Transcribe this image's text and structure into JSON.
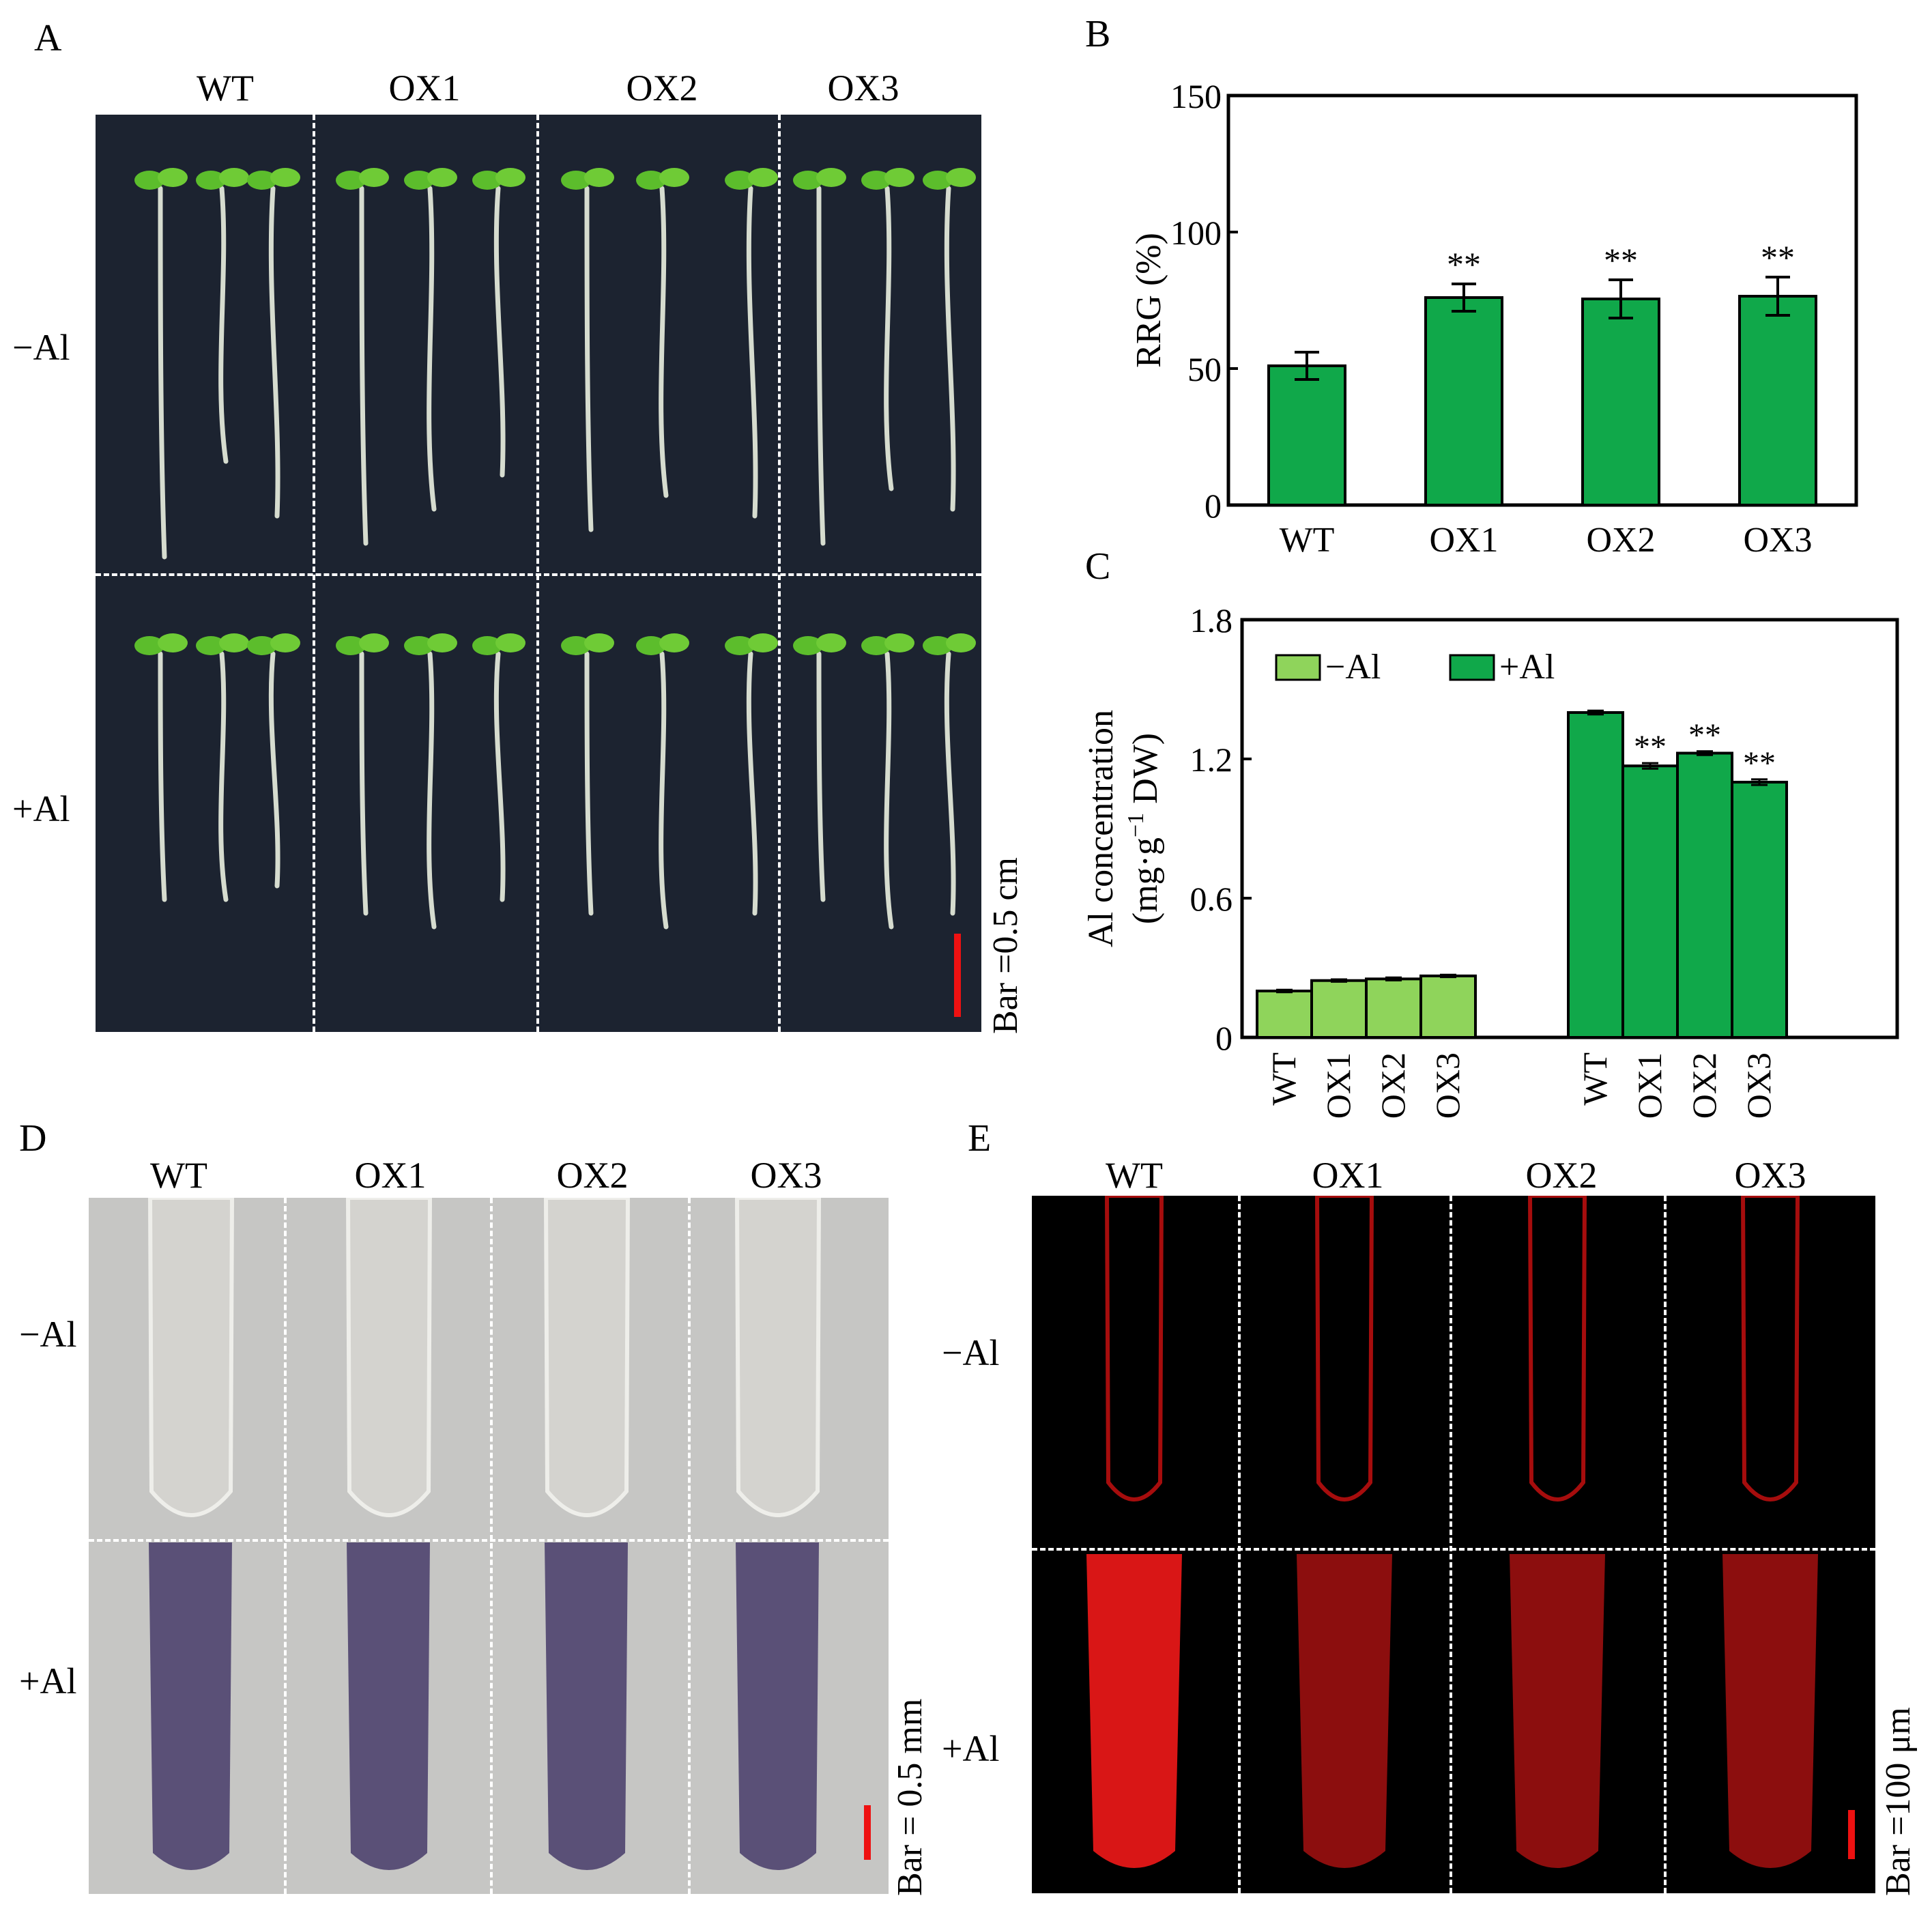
{
  "panel_letters": [
    "A",
    "B",
    "C",
    "D",
    "E"
  ],
  "genotypes": [
    "WT",
    "OX1",
    "OX2",
    "OX3"
  ],
  "treatments": [
    "−Al",
    "+Al"
  ],
  "scale_bars": {
    "A": "Bar =0.5 cm",
    "D": "Bar = 0.5 mm",
    "E": "Bar =100 μm"
  },
  "colors": {
    "bar_dark": "#10a84a",
    "bar_light": "#8fd45b",
    "scale_bar": "#ee1111",
    "photo_A_bg": "#1c2330",
    "photo_D_bg": "#c6c6c4",
    "photo_D_stain": "#5a5077",
    "photo_E_bg": "#000000",
    "photo_E_signal": "#ff1a1a"
  },
  "chart_data": [
    {
      "panel": "B",
      "type": "bar",
      "title": "",
      "xlabel": "",
      "ylabel": "RRG (%)",
      "ylim": [
        0,
        150
      ],
      "yticks": [
        "0",
        "50",
        "100",
        "150"
      ],
      "categories": [
        "WT",
        "OX1",
        "OX2",
        "OX3"
      ],
      "series": [
        {
          "values": [
            51,
            76,
            75.5,
            76.5
          ],
          "errors": [
            5,
            5,
            7,
            7
          ]
        }
      ],
      "annotations": [
        "",
        "**",
        "**",
        "**"
      ],
      "grid": false,
      "legend": "none"
    },
    {
      "panel": "C",
      "type": "bar",
      "title": "",
      "xlabel": "",
      "ylabel_line1": "Al concentration",
      "ylabel_line2": "(mg·g",
      "ylabel_sup": "−1",
      "ylabel_line2_end": " DW)",
      "ylim": [
        0,
        1.8
      ],
      "yticks": [
        "0",
        "0.6",
        "1.2",
        "1.8"
      ],
      "categories": [
        "WT",
        "OX1",
        "OX2",
        "OX3"
      ],
      "series": [
        {
          "name": "−Al",
          "values": [
            0.2,
            0.245,
            0.252,
            0.265
          ],
          "errors": [
            0.005,
            0.005,
            0.006,
            0.005
          ]
        },
        {
          "name": "+Al",
          "values": [
            1.4,
            1.17,
            1.225,
            1.1
          ],
          "errors": [
            0.008,
            0.012,
            0.008,
            0.012
          ]
        }
      ],
      "annotations": [
        [
          "",
          "",
          "",
          ""
        ],
        [
          "",
          "**",
          "**",
          "**"
        ]
      ],
      "grid": false,
      "legend": "top-left"
    }
  ]
}
